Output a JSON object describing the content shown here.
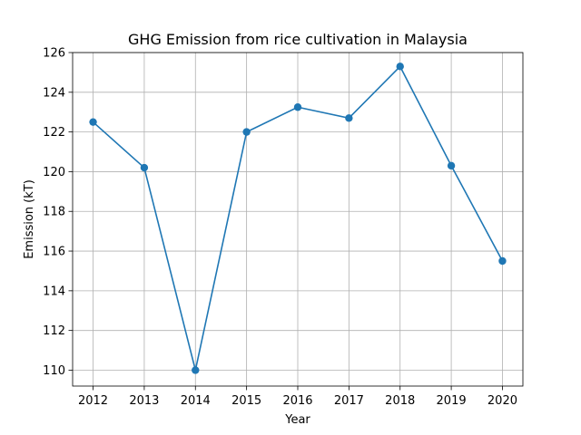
{
  "chart_data": {
    "type": "line",
    "title": "GHG Emission from rice cultivation in Malaysia",
    "xlabel": "Year",
    "ylabel": "Emission (kT)",
    "x": [
      2012,
      2013,
      2014,
      2015,
      2016,
      2017,
      2018,
      2019,
      2020
    ],
    "series": [
      {
        "values": [
          122.5,
          120.2,
          110.0,
          122.0,
          123.25,
          122.7,
          125.3,
          120.3,
          115.5
        ]
      }
    ],
    "xlim": [
      2011.6,
      2020.4
    ],
    "ylim": [
      109.2,
      126.0
    ],
    "xticks": [
      2012,
      2013,
      2014,
      2015,
      2016,
      2017,
      2018,
      2019,
      2020
    ],
    "yticks": [
      110,
      112,
      114,
      116,
      118,
      120,
      122,
      124,
      126
    ],
    "grid": true,
    "marker": "circle",
    "line_color": "#1f77b4"
  }
}
